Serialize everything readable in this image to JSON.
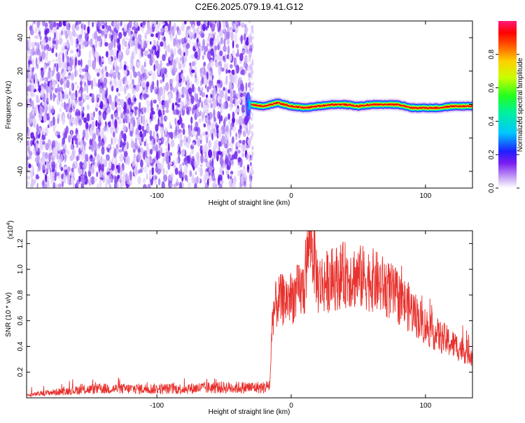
{
  "title": "C2E6.2025.079.19.41.G12",
  "chart_data": [
    {
      "type": "heatmap",
      "xlabel": "Height of straight line (km)",
      "ylabel": "Frequency (Hz)",
      "xlim": [
        -197,
        135
      ],
      "ylim": [
        -50,
        50
      ],
      "xticks": [
        -100,
        0,
        100
      ],
      "yticks": [
        -40,
        -20,
        0,
        20,
        40
      ],
      "xtick_labels": [
        "-100",
        "0",
        "100"
      ],
      "ytick_labels": [
        "-40",
        "-20",
        "0",
        "20",
        "40"
      ],
      "noise_region": {
        "x_range": [
          -197,
          -30
        ],
        "y_range": [
          -50,
          50
        ]
      },
      "signal_trace": {
        "x": [
          -30,
          -20,
          -10,
          0,
          10,
          20,
          30,
          40,
          50,
          60,
          70,
          80,
          90,
          100,
          110,
          120,
          130,
          135
        ],
        "y": [
          0,
          -1,
          1,
          -1,
          -2,
          -1,
          0,
          0,
          -1,
          0,
          0,
          0,
          -2,
          -2,
          -2,
          -1,
          -1,
          -1
        ]
      },
      "colorbar": {
        "label": "Normalized spectral amplitude",
        "range": [
          0,
          1
        ],
        "ticks": [
          0.0,
          0.2,
          0.4,
          0.6,
          0.8
        ],
        "tick_labels": [
          "0.0",
          "0.2",
          "0.4",
          "0.6",
          "0.8"
        ]
      }
    },
    {
      "type": "line",
      "xlabel": "Height of straight line (km)",
      "ylabel": "SNR (10 * v/v)",
      "yscale_label": "(x10",
      "yscale_exp": "4",
      "yscale_close": ")",
      "xlim": [
        -197,
        135
      ],
      "ylim": [
        0,
        1.3
      ],
      "xticks": [
        -100,
        0,
        100
      ],
      "yticks": [
        0.2,
        0.4,
        0.6,
        0.8,
        1.0,
        1.2
      ],
      "xtick_labels": [
        "-100",
        "0",
        "100"
      ],
      "ytick_labels": [
        "0.2",
        "0.4",
        "0.6",
        "0.8",
        "1.0",
        "1.2"
      ],
      "color": "#e8322e",
      "series": [
        {
          "x": [
            -197,
            -180,
            -160,
            -140,
            -120,
            -100,
            -80,
            -60,
            -40,
            -20,
            -16,
            -15,
            -14,
            -10,
            0,
            10,
            14,
            20,
            30,
            40,
            50,
            60,
            70,
            80,
            90,
            100,
            110,
            120,
            130,
            135
          ],
          "values": [
            0.02,
            0.04,
            0.06,
            0.07,
            0.07,
            0.07,
            0.07,
            0.08,
            0.08,
            0.08,
            0.1,
            0.3,
            0.65,
            0.75,
            0.78,
            0.86,
            1.32,
            0.88,
            0.92,
            0.96,
            0.94,
            0.92,
            0.86,
            0.78,
            0.68,
            0.56,
            0.48,
            0.42,
            0.36,
            0.34
          ]
        }
      ]
    }
  ]
}
